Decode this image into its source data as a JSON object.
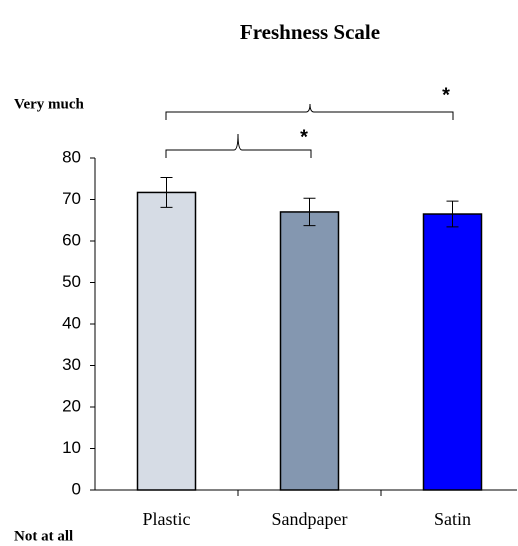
{
  "chart_data": {
    "type": "bar",
    "title": "Freshness Scale",
    "categories": [
      "Plastic",
      "Sandpaper",
      "Satin"
    ],
    "values": [
      71.7,
      67,
      66.5
    ],
    "errors": [
      3.6,
      3.3,
      3.1
    ],
    "colors": [
      "#d6dce5",
      "#8497b0",
      "#0000ff"
    ],
    "ylim": [
      0,
      80
    ],
    "yticks": [
      0,
      10,
      20,
      30,
      40,
      50,
      60,
      70,
      80
    ],
    "annotations": [
      "Very much",
      "Not at all",
      "*",
      "*"
    ]
  }
}
